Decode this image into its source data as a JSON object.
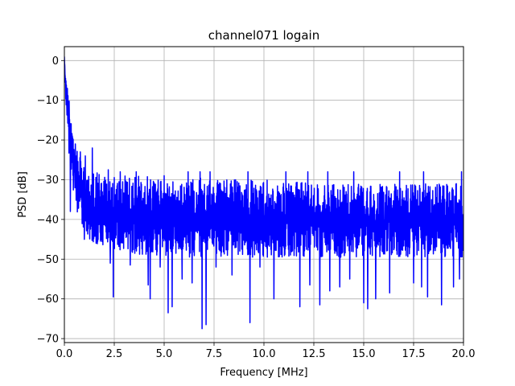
{
  "chart_data": {
    "type": "line",
    "title": "channel071 logain",
    "xlabel": "Frequency [MHz]",
    "ylabel": "PSD [dB]",
    "xlim": [
      0,
      20
    ],
    "ylim": [
      -71,
      3.5
    ],
    "xticks": [
      0,
      2.5,
      5,
      7.5,
      10,
      12.5,
      15,
      17.5,
      20
    ],
    "xtick_labels": [
      "0.0",
      "2.5",
      "5.0",
      "7.5",
      "10.0",
      "12.5",
      "15.0",
      "17.5",
      "20.0"
    ],
    "yticks": [
      0,
      -10,
      -20,
      -30,
      -40,
      -50,
      -60,
      -70
    ],
    "ytick_labels": [
      "0",
      "−10",
      "−20",
      "−30",
      "−40",
      "−50",
      "−60",
      "−70"
    ],
    "grid": true,
    "series": [
      {
        "color": "#0000ff",
        "x": [
          0,
          0.05,
          0.1,
          0.15,
          0.2,
          0.3,
          0.4,
          0.5,
          0.6,
          0.8,
          1.0,
          1.2,
          1.5,
          2.0,
          2.5,
          3.0,
          4.0,
          5.0,
          6.0,
          7.0,
          8.0,
          9.0,
          10.0,
          11.0,
          12.0,
          13.0,
          14.0,
          15.0,
          16.0,
          17.0,
          18.0,
          19.0,
          20.0
        ],
        "y_upper": [
          1.0,
          -3.0,
          -5.0,
          -6.0,
          -8.0,
          -12.0,
          -16.0,
          -20.0,
          -22.0,
          -24.0,
          -26.0,
          -27.0,
          -28.0,
          -28.5,
          -29.0,
          -29.0,
          -29.0,
          -29.5,
          -29.5,
          -29.5,
          -30.0,
          -30.0,
          -30.0,
          -30.5,
          -30.5,
          -30.5,
          -30.5,
          -31.0,
          -31.0,
          -31.0,
          -31.0,
          -31.0,
          -31.0
        ],
        "y_lower": [
          1.0,
          -8.0,
          -14.0,
          -18.0,
          -22.0,
          -28.0,
          -32.0,
          -36.0,
          -38.0,
          -41.0,
          -43.0,
          -45.0,
          -46.0,
          -47.0,
          -48.0,
          -48.0,
          -49.0,
          -49.0,
          -49.5,
          -49.5,
          -49.5,
          -49.5,
          -49.5,
          -49.5,
          -49.5,
          -49.5,
          -49.5,
          -49.5,
          -49.5,
          -49.5,
          -49.5,
          -49.5,
          -49.5
        ],
        "dips": [
          [
            0.3,
            -38
          ],
          [
            1.0,
            -45
          ],
          [
            1.6,
            -45
          ],
          [
            2.3,
            -51
          ],
          [
            2.45,
            -59.5
          ],
          [
            3.3,
            -51.5
          ],
          [
            3.6,
            -53
          ],
          [
            4.2,
            -56.5
          ],
          [
            4.3,
            -60
          ],
          [
            4.8,
            -52
          ],
          [
            5.2,
            -63.5
          ],
          [
            5.4,
            -62
          ],
          [
            5.9,
            -55
          ],
          [
            6.4,
            -56
          ],
          [
            6.9,
            -67.5
          ],
          [
            7.1,
            -66.5
          ],
          [
            7.6,
            -52
          ],
          [
            8.4,
            -54
          ],
          [
            9.3,
            -66
          ],
          [
            9.8,
            -52
          ],
          [
            10.5,
            -60
          ],
          [
            11.1,
            -58
          ],
          [
            11.8,
            -62
          ],
          [
            12.3,
            -56.5
          ],
          [
            12.8,
            -61.5
          ],
          [
            13.3,
            -58
          ],
          [
            13.8,
            -57
          ],
          [
            14.3,
            -55
          ],
          [
            15.0,
            -61
          ],
          [
            15.2,
            -62.5
          ],
          [
            15.6,
            -60
          ],
          [
            16.3,
            -58.5
          ],
          [
            16.8,
            -56
          ],
          [
            17.5,
            -56
          ],
          [
            17.9,
            -57
          ],
          [
            18.2,
            -59.5
          ],
          [
            18.9,
            -61.5
          ],
          [
            19.5,
            -57
          ],
          [
            19.8,
            -55
          ]
        ],
        "peaks": [
          [
            0.05,
            -5.5
          ],
          [
            0.15,
            -7
          ],
          [
            0.25,
            -15
          ],
          [
            0.4,
            -19
          ],
          [
            0.55,
            -21
          ],
          [
            0.8,
            -23
          ],
          [
            1.05,
            -24
          ],
          [
            1.4,
            -22
          ],
          [
            2.2,
            -27.5
          ],
          [
            2.8,
            -28
          ],
          [
            3.6,
            -28
          ],
          [
            5.0,
            -29
          ],
          [
            6.2,
            -28
          ],
          [
            6.8,
            -28
          ],
          [
            7.3,
            -28
          ],
          [
            9.2,
            -28
          ],
          [
            11.1,
            -28
          ],
          [
            12.2,
            -28
          ],
          [
            13.2,
            -28
          ],
          [
            14.5,
            -28
          ],
          [
            16.8,
            -28
          ],
          [
            18.0,
            -28
          ],
          [
            19.9,
            -28
          ]
        ]
      }
    ]
  }
}
